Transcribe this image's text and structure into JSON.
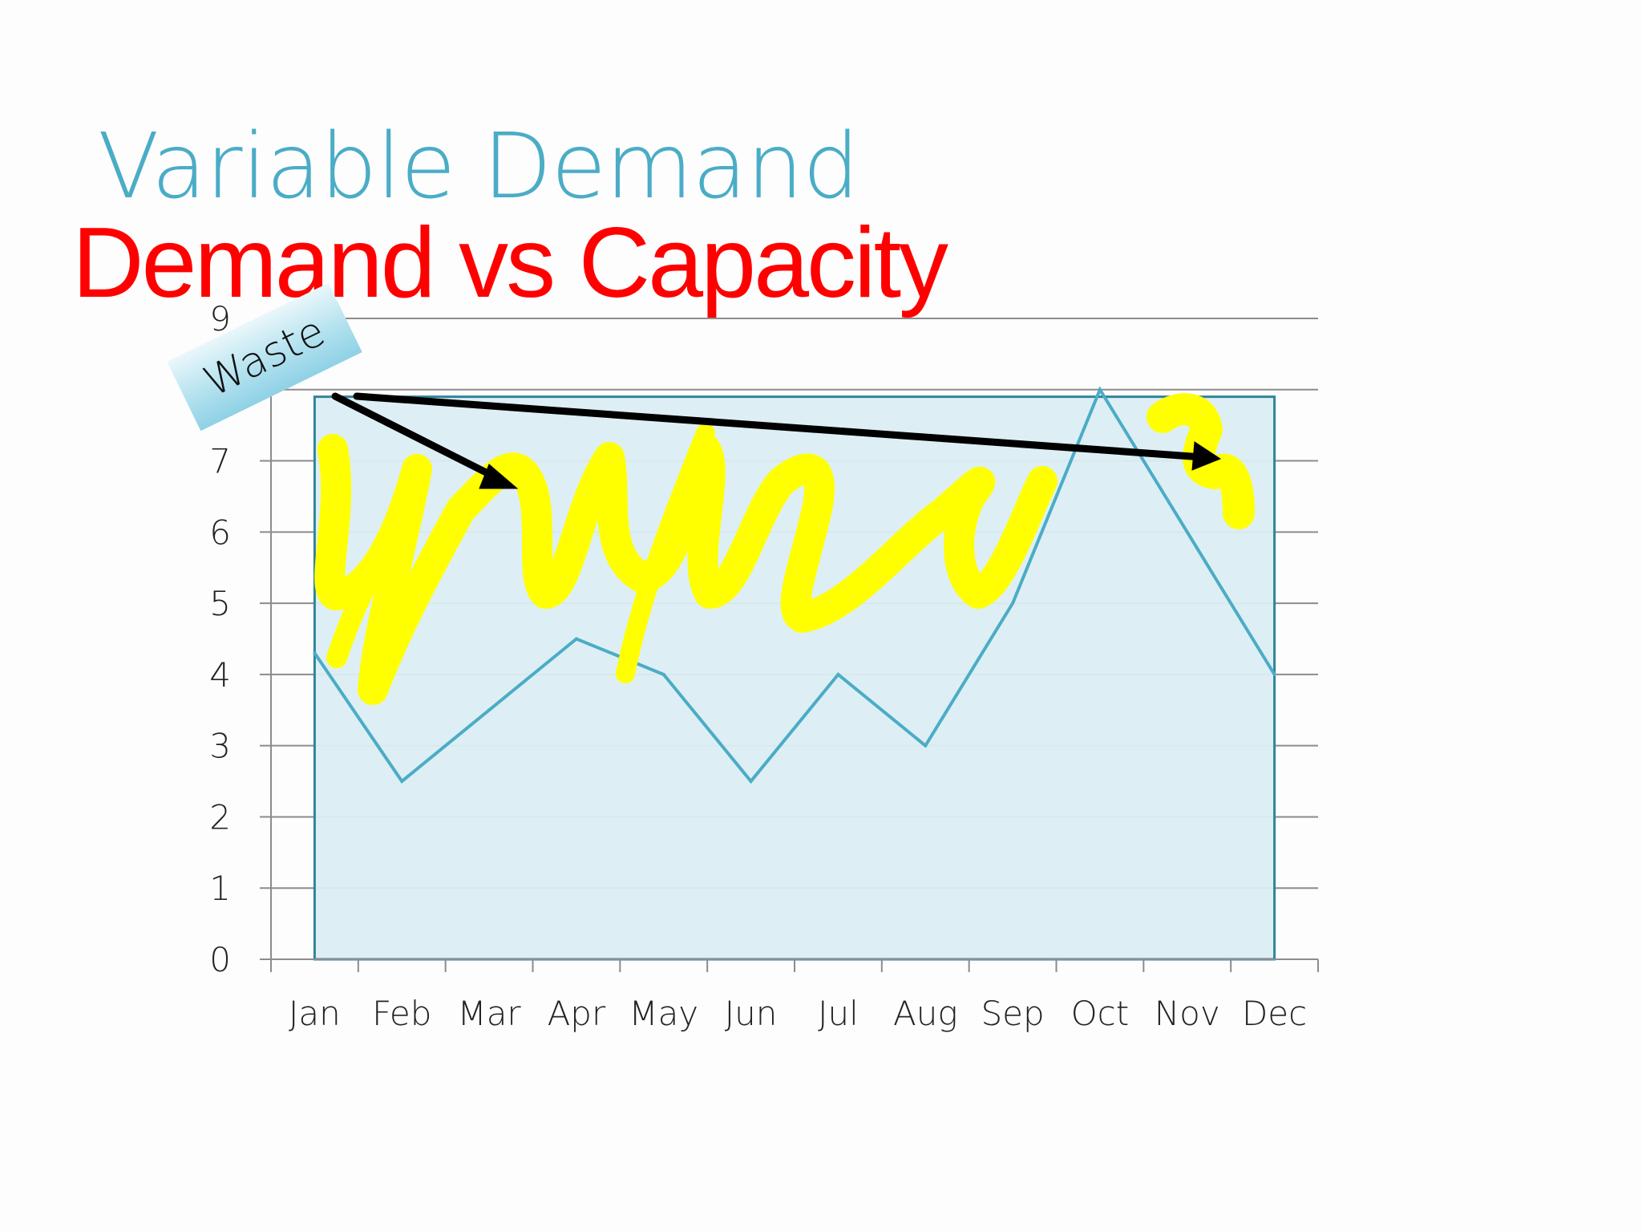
{
  "slide": {
    "title": "Variable Demand",
    "subtitle": "Demand vs Capacity"
  },
  "chart_data": {
    "type": "line",
    "categories": [
      "Jan",
      "Feb",
      "Mar",
      "Apr",
      "May",
      "Jun",
      "Jul",
      "Aug",
      "Sep",
      "Oct",
      "Nov",
      "Dec"
    ],
    "series": [
      {
        "values": [
          4.3,
          2.5,
          3.5,
          4.5,
          4.0,
          2.5,
          4.0,
          3.0,
          5.0,
          8.0,
          6.0,
          4.0
        ]
      }
    ],
    "capacity_level": 7.9,
    "ylim": [
      0,
      9
    ],
    "yticks": [
      "0",
      "1",
      "2",
      "3",
      "4",
      "5",
      "6",
      "7",
      "9"
    ],
    "grid": true,
    "annotations": [
      {
        "text": "Waste"
      }
    ]
  },
  "colors": {
    "title": "#4bacc6",
    "subtitle": "#ff0000",
    "line": "#4bacc6",
    "capacity_fill": "#dbeef3",
    "capacity_stroke": "#31849b",
    "highlight": "#ffff00",
    "grid": "#8c8c8c",
    "arrow": "#000000"
  }
}
